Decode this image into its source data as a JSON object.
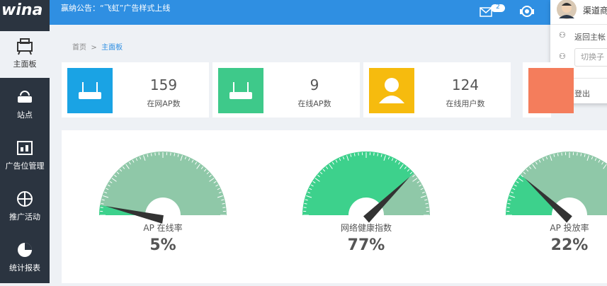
{
  "logo": "wina",
  "announcement": "赢纳公告：“飞虹”广告样式上线",
  "mail_badge": "2",
  "user_menu": {
    "name": "渠道商",
    "items": [
      "返回主帐",
      "登出"
    ],
    "switch_placeholder": "切换子"
  },
  "sidebar": [
    "主面板",
    "站点",
    "广告位管理",
    "推广活动",
    "统计报表"
  ],
  "breadcrumb": [
    "首页",
    "主面板"
  ],
  "stats": [
    {
      "value": 159,
      "label": "在网AP数"
    },
    {
      "value": 9,
      "label": "在线AP数"
    },
    {
      "value": 124,
      "label": "在线用户数"
    }
  ],
  "gauges": [
    {
      "label": "AP 在线率",
      "value": 5,
      "value_label": "5%"
    },
    {
      "label": "网络健康指数",
      "value": 77,
      "value_label": "77%"
    },
    {
      "label": "AP 投放率",
      "value": 22,
      "value_label": "22%"
    }
  ]
}
